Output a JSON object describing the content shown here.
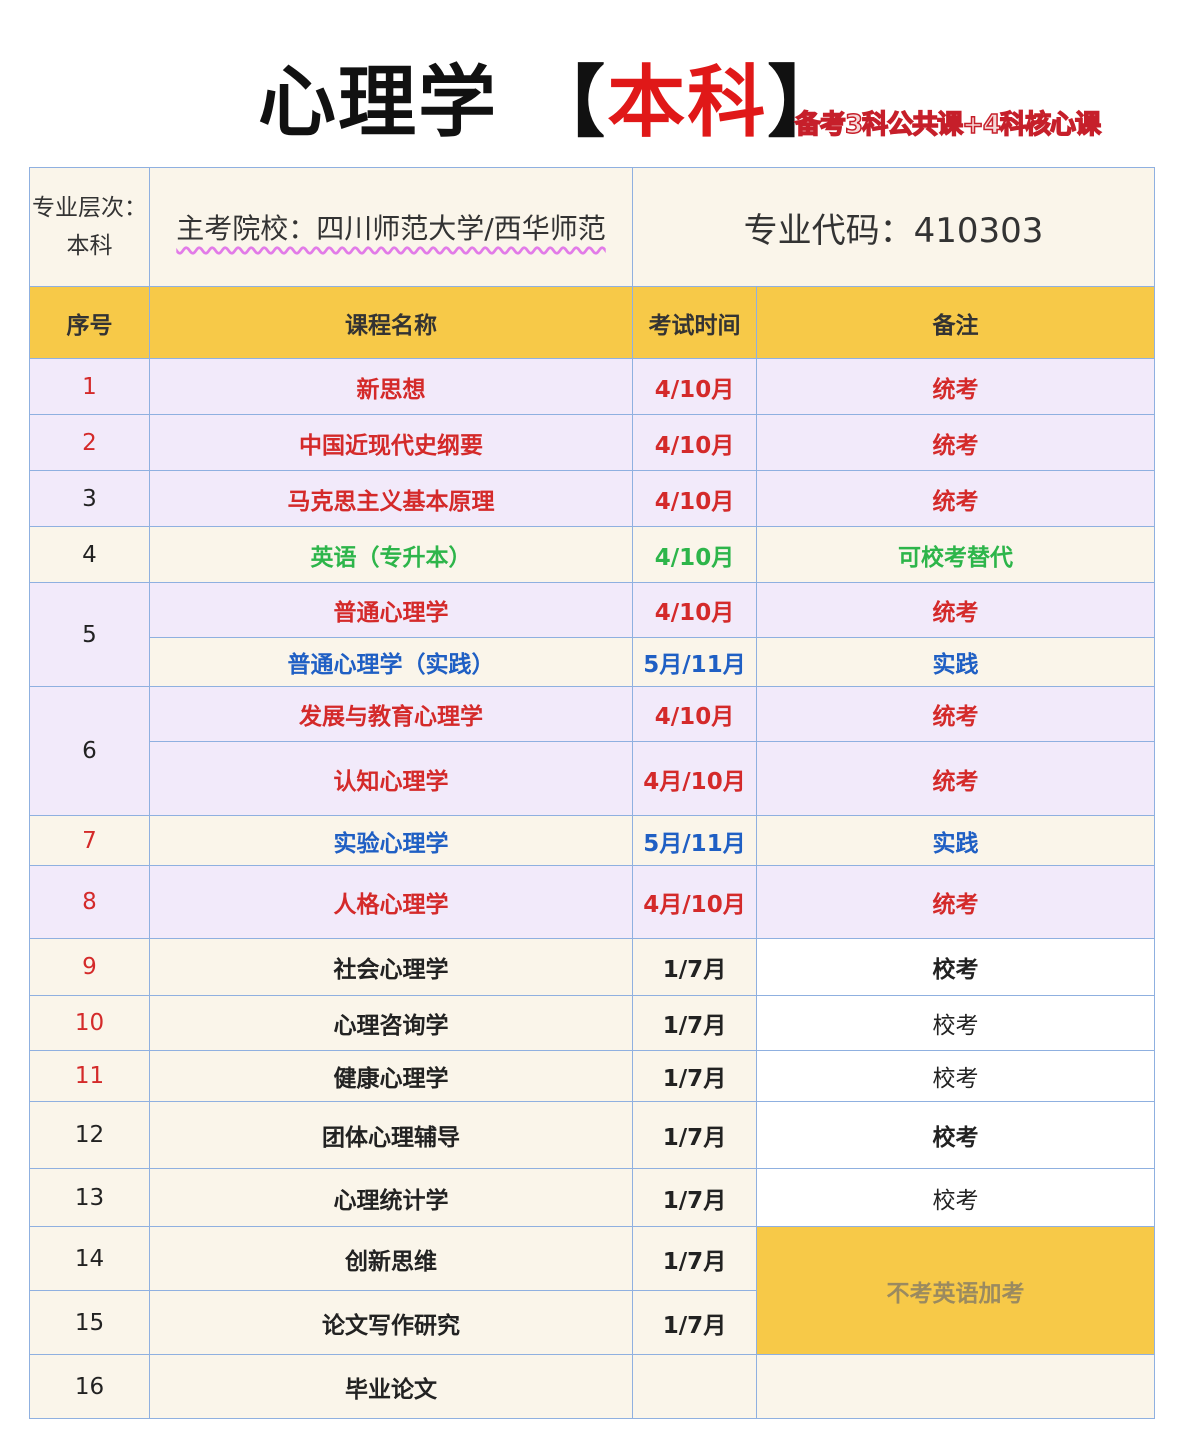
{
  "title": {
    "main": "心理学",
    "bracket_open": "【",
    "highlight": "本科",
    "bracket_close": "】",
    "subtitle": "备考3科公共课+4科核心课"
  },
  "info": {
    "level": "专业层次：本科",
    "school": "主考院校：四川师范大学/西华师范",
    "code": "专业代码：410303"
  },
  "headers": [
    "序号",
    "课程名称",
    "考试时间",
    "备注"
  ],
  "colors": {
    "header": "#f7c948",
    "unified_exam": "#d42a2a",
    "alternative": "#2db54a",
    "practice": "#1f5fc4",
    "row_purple": "#f2eafa",
    "row_cream": "#faf5ea"
  },
  "rows": [
    {
      "no": "1",
      "name": "新思想",
      "time": "4/10月",
      "note": "统考"
    },
    {
      "no": "2",
      "name": "中国近现代史纲要",
      "time": "4/10月",
      "note": "统考"
    },
    {
      "no": "3",
      "name": "马克思主义基本原理",
      "time": "4/10月",
      "note": "统考"
    },
    {
      "no": "4",
      "name": "英语（专升本）",
      "time": "4/10月",
      "note": "可校考替代"
    },
    {
      "no": "5",
      "name": "普通心理学",
      "time": "4/10月",
      "note": "统考"
    },
    {
      "name": "普通心理学（实践）",
      "time": "5月/11月",
      "note": "实践"
    },
    {
      "no": "6",
      "name": "发展与教育心理学",
      "time": "4/10月",
      "note": "统考"
    },
    {
      "name": "认知心理学",
      "time": "4月/10月",
      "note": "统考"
    },
    {
      "no": "7",
      "name": "实验心理学",
      "time": "5月/11月",
      "note": "实践"
    },
    {
      "no": "8",
      "name": "人格心理学",
      "time": "4月/10月",
      "note": "统考"
    },
    {
      "no": "9",
      "name": "社会心理学",
      "time": "1/7月",
      "note": "校考"
    },
    {
      "no": "10",
      "name": "心理咨询学",
      "time": "1/7月",
      "note": "校考"
    },
    {
      "no": "11",
      "name": "健康心理学",
      "time": "1/7月",
      "note": "校考"
    },
    {
      "no": "12",
      "name": "团体心理辅导",
      "time": "1/7月",
      "note": "校考"
    },
    {
      "no": "13",
      "name": "心理统计学",
      "time": "1/7月",
      "note": "校考"
    },
    {
      "no": "14",
      "name": "创新思维",
      "time": "1/7月",
      "note": "不考英语加考"
    },
    {
      "no": "15",
      "name": "论文写作研究",
      "time": "1/7月"
    },
    {
      "no": "16",
      "name": "毕业论文",
      "time": "",
      "note": ""
    }
  ]
}
